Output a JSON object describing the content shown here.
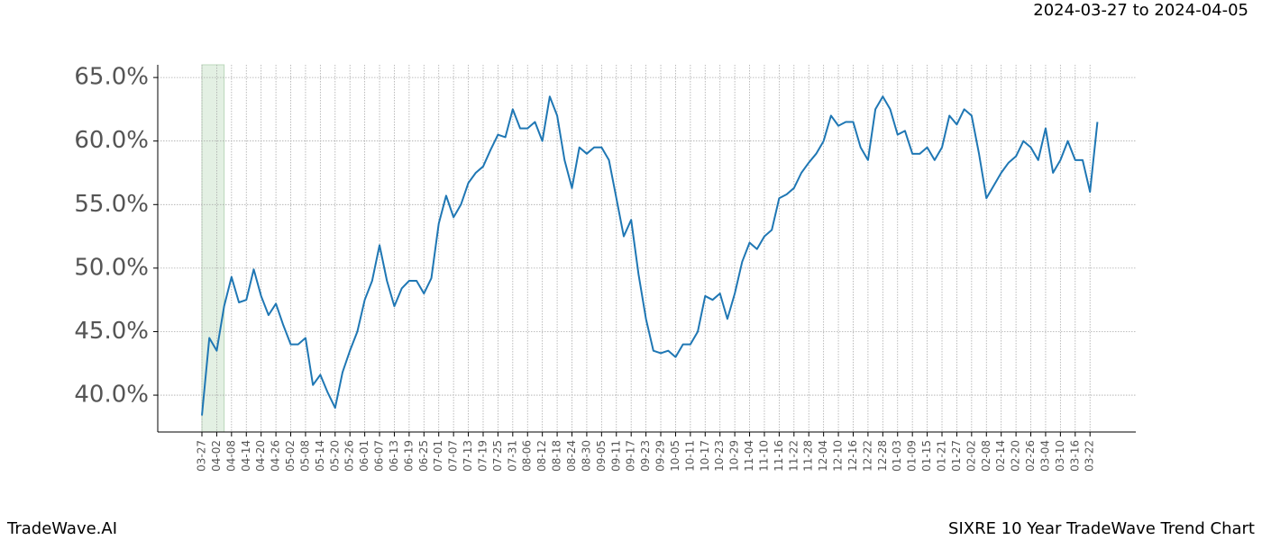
{
  "chart_data": {
    "type": "line",
    "title": "SIXRE 10 Year TradeWave Trend Chart",
    "subtitle": "2024-03-27 to 2024-04-05",
    "source": "TradeWave.AI",
    "categories": [
      "03-27",
      null,
      "04-02",
      null,
      "04-08",
      null,
      "04-14",
      null,
      "04-20",
      null,
      "04-26",
      null,
      "05-02",
      null,
      "05-08",
      null,
      "05-14",
      null,
      "05-20",
      null,
      "05-26",
      null,
      "06-01",
      null,
      "06-07",
      null,
      "06-13",
      null,
      "06-19",
      null,
      "06-25",
      null,
      "07-01",
      null,
      "07-07",
      null,
      "07-13",
      null,
      "07-19",
      null,
      "07-25",
      null,
      "07-31",
      null,
      "08-06",
      null,
      "08-12",
      null,
      "08-18",
      null,
      "08-24",
      null,
      "08-30",
      null,
      "09-05",
      null,
      "09-11",
      null,
      "09-17",
      null,
      "09-23",
      null,
      "09-29",
      null,
      "10-05",
      null,
      "10-11",
      null,
      "10-17",
      null,
      "10-23",
      null,
      "10-29",
      null,
      "11-04",
      null,
      "11-10",
      null,
      "11-16",
      null,
      "11-22",
      null,
      "11-28",
      null,
      "12-04",
      null,
      "12-10",
      null,
      "12-16",
      null,
      "12-22",
      null,
      "12-28",
      null,
      "01-03",
      null,
      "01-09",
      null,
      "01-15",
      null,
      "01-21",
      null,
      "01-27",
      null,
      "02-02",
      null,
      "02-08",
      null,
      "02-14",
      null,
      "02-20",
      null,
      "02-26",
      null,
      "03-04",
      null,
      "03-10",
      null,
      "03-16",
      null,
      "03-22",
      null
    ],
    "series": [
      {
        "color": "#1f77b4",
        "values": [
          38.4,
          44.5,
          43.5,
          47.0,
          49.3,
          47.3,
          47.5,
          49.9,
          47.8,
          46.3,
          47.2,
          45.5,
          44.0,
          44.0,
          44.5,
          40.8,
          41.6,
          40.2,
          39.0,
          41.8,
          43.5,
          45.0,
          47.5,
          49.0,
          51.8,
          49.0,
          47.0,
          48.4,
          49.0,
          49.0,
          48.0,
          49.2,
          53.5,
          55.7,
          54.0,
          55.0,
          56.7,
          57.5,
          58.0,
          59.3,
          60.5,
          60.3,
          62.5,
          61.0,
          61.0,
          61.5,
          60.0,
          63.5,
          62.0,
          58.5,
          56.3,
          59.5,
          59.0,
          59.5,
          59.5,
          58.5,
          55.5,
          52.5,
          53.8,
          49.5,
          46.0,
          43.5,
          43.3,
          43.5,
          43.0,
          44.0,
          44.0,
          45.0,
          47.8,
          47.5,
          48.0,
          46.0,
          48.0,
          50.5,
          52.0,
          51.5,
          52.5,
          53.0,
          55.5,
          55.8,
          56.3,
          57.5,
          58.3,
          59.0,
          60.0,
          62.0,
          61.2,
          61.5,
          61.5,
          59.5,
          58.5,
          62.5,
          63.5,
          62.5,
          60.5,
          60.8,
          59.0,
          59.0,
          59.5,
          58.5,
          59.5,
          62.0,
          61.3,
          62.5,
          62.0,
          59.0,
          55.5,
          56.5,
          57.5,
          58.3,
          58.8,
          60.0,
          59.5,
          58.5,
          61.0,
          57.5,
          58.5,
          60.0,
          58.5,
          58.5,
          56.0,
          61.5
        ]
      }
    ],
    "ylim": [
      37.1,
      66.0
    ],
    "yticks": [
      {
        "value": 40,
        "label": "40.0%"
      },
      {
        "value": 45,
        "label": "45.0%"
      },
      {
        "value": 50,
        "label": "50.0%"
      },
      {
        "value": 55,
        "label": "55.0%"
      },
      {
        "value": 60,
        "label": "60.0%"
      },
      {
        "value": 65,
        "label": "65.0%"
      }
    ],
    "highlight": {
      "from": 0,
      "to": 3,
      "color": "#e3f0e3"
    },
    "grid": true
  }
}
